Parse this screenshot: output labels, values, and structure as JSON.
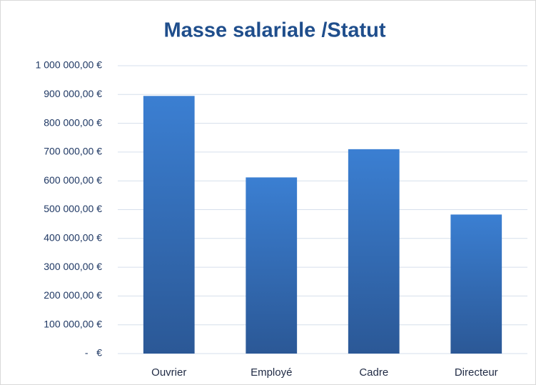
{
  "chart_data": {
    "type": "bar",
    "title": "Masse salariale /Statut",
    "categories": [
      "Ouvrier",
      "Employé",
      "Cadre",
      "Directeur"
    ],
    "values": [
      895000,
      612000,
      710000,
      483000
    ],
    "color": "#3b7fd2",
    "ylim": [
      0,
      1000000
    ],
    "yticks": [
      {
        "value": 0,
        "label": "-   €"
      },
      {
        "value": 100000,
        "label": "100 000,00 €"
      },
      {
        "value": 200000,
        "label": "200 000,00 €"
      },
      {
        "value": 300000,
        "label": "300 000,00 €"
      },
      {
        "value": 400000,
        "label": "400 000,00 €"
      },
      {
        "value": 500000,
        "label": "500 000,00 €"
      },
      {
        "value": 600000,
        "label": "600 000,00 €"
      },
      {
        "value": 700000,
        "label": "700 000,00 €"
      },
      {
        "value": 800000,
        "label": "800 000,00 €"
      },
      {
        "value": 900000,
        "label": "900 000,00 €"
      },
      {
        "value": 1000000,
        "label": "1 000 000,00 €"
      }
    ],
    "grid": true
  }
}
